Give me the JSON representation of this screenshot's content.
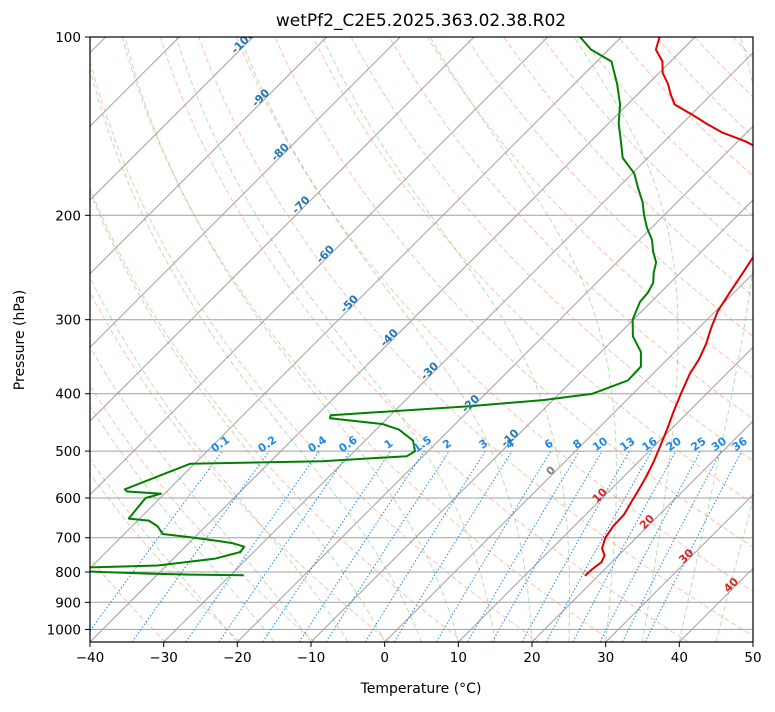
{
  "chart_data": {
    "type": "line",
    "subtype": "skew-T log-P diagram",
    "title": "wetPf2_C2E5.2025.363.02.38.R02",
    "xlabel": "Temperature (°C)",
    "ylabel": "Pressure (hPa)",
    "xlim": [
      -40,
      50
    ],
    "ylim": [
      1050,
      100
    ],
    "y_scale": "log",
    "x_ticks": [
      -40,
      -30,
      -20,
      -10,
      0,
      10,
      20,
      30,
      40,
      50
    ],
    "y_ticks": [
      100,
      200,
      300,
      400,
      500,
      600,
      700,
      800,
      900,
      1000
    ],
    "grid": true,
    "colors": {
      "temperature": "#e00000",
      "dewpoint": "#008000",
      "isotherm": "#a0a0a0",
      "dry_adiabat": "#ff8c69",
      "moist_adiabat": "#4caf50",
      "mixing_ratio": "#1e88e5",
      "label_blue": "#1f77b4",
      "label_red": "#d62728"
    },
    "series": [
      {
        "role": "temperature",
        "points": [
          [
            18.2,
            810
          ],
          [
            18.3,
            790
          ],
          [
            18.6,
            770
          ],
          [
            18.1,
            750
          ],
          [
            16.8,
            730
          ],
          [
            15.8,
            700
          ],
          [
            15.3,
            670
          ],
          [
            15.2,
            640
          ],
          [
            14.5,
            610
          ],
          [
            13.8,
            580
          ],
          [
            13.0,
            550
          ],
          [
            12.0,
            520
          ],
          [
            10.8,
            490
          ],
          [
            9.5,
            460
          ],
          [
            8.0,
            430
          ],
          [
            6.5,
            400
          ],
          [
            5.0,
            370
          ],
          [
            4.3,
            350
          ],
          [
            3.2,
            330
          ],
          [
            1.7,
            310
          ],
          [
            0.3,
            290
          ],
          [
            -0.6,
            270
          ],
          [
            -1.5,
            250
          ],
          [
            -2.5,
            230
          ],
          [
            -3.4,
            215
          ],
          [
            -4.1,
            200
          ],
          [
            -4.6,
            190
          ],
          [
            -5.8,
            180
          ],
          [
            -7.8,
            172
          ],
          [
            -10.1,
            165
          ],
          [
            -12.5,
            160
          ],
          [
            -15.6,
            155
          ],
          [
            -19.0,
            150
          ],
          [
            -23.3,
            145
          ],
          [
            -26.7,
            140
          ],
          [
            -30.0,
            135
          ],
          [
            -33.6,
            130
          ],
          [
            -35.5,
            125
          ],
          [
            -37.3,
            120
          ],
          [
            -39.5,
            115
          ],
          [
            -41.1,
            110
          ],
          [
            -43.6,
            105
          ],
          [
            -44.8,
            100
          ]
        ]
      },
      {
        "role": "dewpoint",
        "points": [
          [
            -28.3,
            810
          ],
          [
            -35.6,
            808
          ],
          [
            -41.3,
            805
          ],
          [
            -48.0,
            800
          ],
          [
            -57.0,
            790
          ],
          [
            -41.2,
            780
          ],
          [
            -34.4,
            760
          ],
          [
            -31.8,
            740
          ],
          [
            -32.0,
            725
          ],
          [
            -34.1,
            715
          ],
          [
            -36.0,
            710
          ],
          [
            -40.0,
            700
          ],
          [
            -44.8,
            690
          ],
          [
            -46.5,
            670
          ],
          [
            -48.5,
            655
          ],
          [
            -51.5,
            650
          ],
          [
            -52.0,
            600
          ],
          [
            -50.5,
            590
          ],
          [
            -55.4,
            585
          ],
          [
            -56.0,
            580
          ],
          [
            -50.6,
            525
          ],
          [
            -33.0,
            520
          ],
          [
            -22.2,
            510
          ],
          [
            -21.8,
            500
          ],
          [
            -23.5,
            480
          ],
          [
            -26.9,
            460
          ],
          [
            -29.9,
            450
          ],
          [
            -37.8,
            440
          ],
          [
            -38.1,
            435
          ],
          [
            -32.3,
            430
          ],
          [
            -20.5,
            420
          ],
          [
            -11.2,
            410
          ],
          [
            -5.5,
            400
          ],
          [
            -2.5,
            380
          ],
          [
            -2.6,
            360
          ],
          [
            -4.6,
            340
          ],
          [
            -7.8,
            320
          ],
          [
            -10.1,
            300
          ],
          [
            -11.5,
            280
          ],
          [
            -11.7,
            270
          ],
          [
            -12.3,
            260
          ],
          [
            -13.6,
            250
          ],
          [
            -14.7,
            240
          ],
          [
            -16.6,
            230
          ],
          [
            -18.3,
            220
          ],
          [
            -20.6,
            210
          ],
          [
            -22.7,
            200
          ],
          [
            -24.7,
            190
          ],
          [
            -27.2,
            180
          ],
          [
            -29.7,
            170
          ],
          [
            -33.4,
            160
          ],
          [
            -35.9,
            150
          ],
          [
            -38.6,
            140
          ],
          [
            -41.0,
            130
          ],
          [
            -44.2,
            120
          ],
          [
            -48.0,
            110
          ],
          [
            -52.4,
            105
          ],
          [
            -55.6,
            100
          ]
        ]
      }
    ],
    "dry_adiabat_labels": [
      "-100",
      "-90",
      "-80",
      "-70",
      "-60",
      "-50",
      "-40",
      "-30",
      "-20",
      "-10",
      "0",
      "10",
      "20",
      "30",
      "40"
    ],
    "mixing_ratio_labels": [
      "0.1",
      "0.2",
      "0.4",
      "0.6",
      "1",
      "1.5",
      "2",
      "3",
      "4",
      "6",
      "8",
      "10",
      "13",
      "16",
      "20",
      "25",
      "30",
      "36"
    ]
  }
}
